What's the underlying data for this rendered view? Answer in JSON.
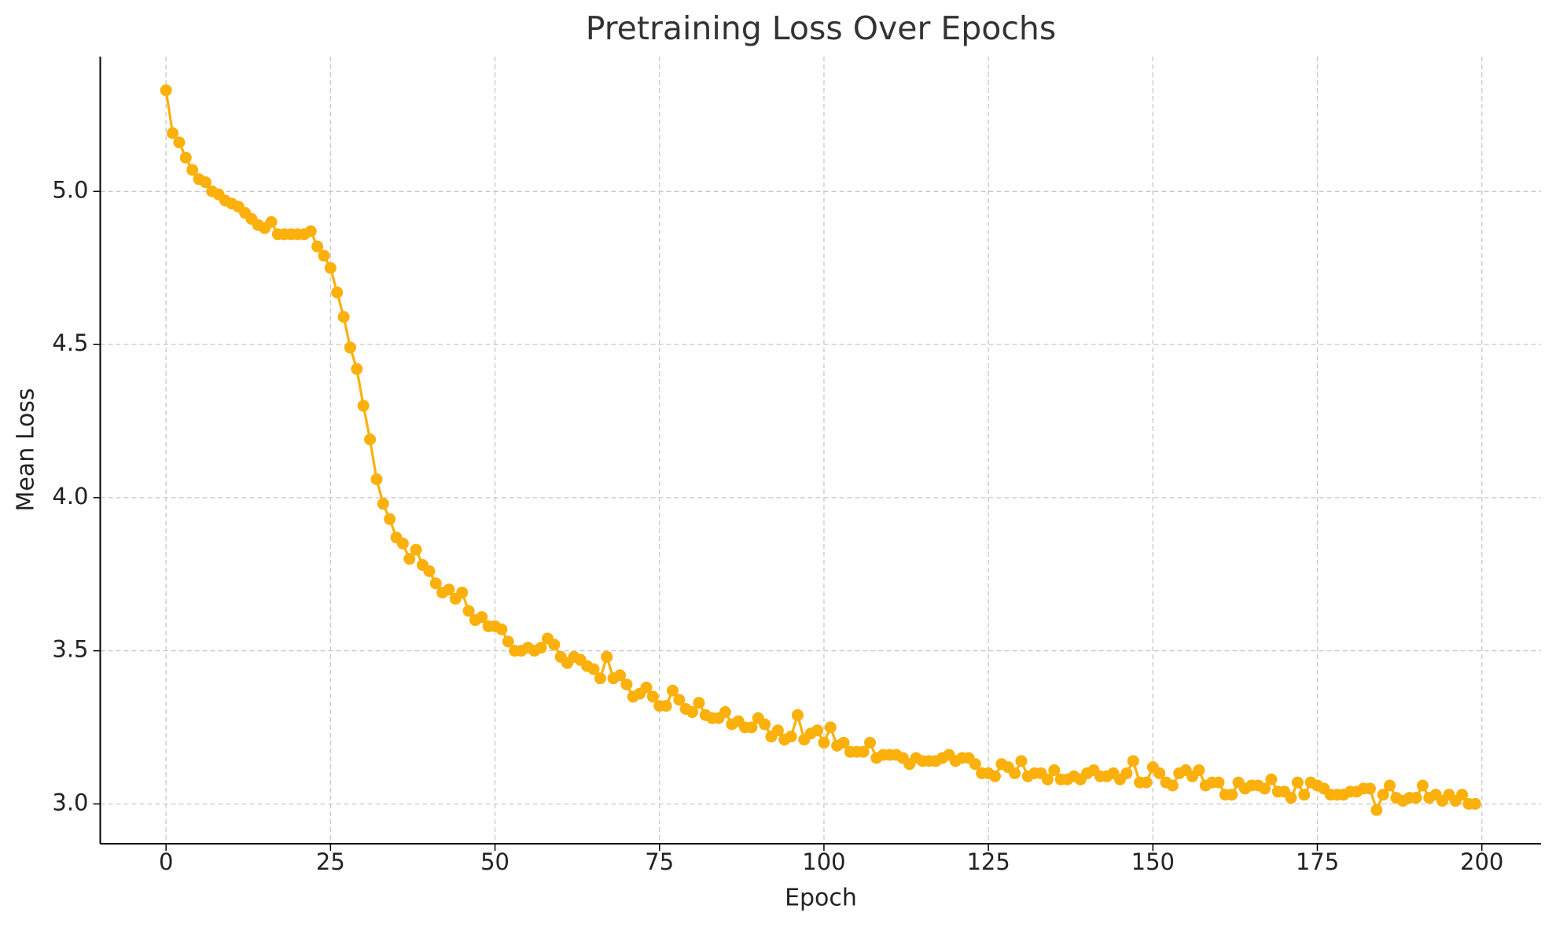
{
  "chart_data": {
    "type": "line",
    "title": "Pretraining Loss Over Epochs",
    "x_label": "Epoch",
    "y_label": "Mean Loss",
    "color": "#fbb00b",
    "grid": true,
    "markers": true,
    "xlim": [
      -10,
      209
    ],
    "ylim": [
      2.87,
      5.44
    ],
    "xticks": [
      0,
      25,
      50,
      75,
      100,
      125,
      150,
      175,
      200
    ],
    "yticks": [
      {
        "value": 3,
        "label": "3.0"
      },
      3.5,
      {
        "value": 4,
        "label": "4.0"
      },
      4.5,
      {
        "value": 5,
        "label": "5.0"
      }
    ],
    "x": [
      0,
      1,
      2,
      3,
      4,
      5,
      6,
      7,
      8,
      9,
      10,
      11,
      12,
      13,
      14,
      15,
      16,
      17,
      18,
      19,
      20,
      21,
      22,
      23,
      24,
      25,
      26,
      27,
      28,
      29,
      30,
      31,
      32,
      33,
      34,
      35,
      36,
      37,
      38,
      39,
      40,
      41,
      42,
      43,
      44,
      45,
      46,
      47,
      48,
      49,
      50,
      51,
      52,
      53,
      54,
      55,
      56,
      57,
      58,
      59,
      60,
      61,
      62,
      63,
      64,
      65,
      66,
      67,
      68,
      69,
      70,
      71,
      72,
      73,
      74,
      75,
      76,
      77,
      78,
      79,
      80,
      81,
      82,
      83,
      84,
      85,
      86,
      87,
      88,
      89,
      90,
      91,
      92,
      93,
      94,
      95,
      96,
      97,
      98,
      99,
      100,
      101,
      102,
      103,
      104,
      105,
      106,
      107,
      108,
      109,
      110,
      111,
      112,
      113,
      114,
      115,
      116,
      117,
      118,
      119,
      120,
      121,
      122,
      123,
      124,
      125,
      126,
      127,
      128,
      129,
      130,
      131,
      132,
      133,
      134,
      135,
      136,
      137,
      138,
      139,
      140,
      141,
      142,
      143,
      144,
      145,
      146,
      147,
      148,
      149,
      150,
      151,
      152,
      153,
      154,
      155,
      156,
      157,
      158,
      159,
      160,
      161,
      162,
      163,
      164,
      165,
      166,
      167,
      168,
      169,
      170,
      171,
      172,
      173,
      174,
      175,
      176,
      177,
      178,
      179,
      180,
      181,
      182,
      183,
      184,
      185,
      186,
      187,
      188,
      189,
      190,
      191,
      192,
      193,
      194,
      195,
      196,
      197,
      198,
      199
    ],
    "values": [
      5.33,
      5.19,
      5.16,
      5.11,
      5.07,
      5.04,
      5.03,
      5.0,
      4.99,
      4.97,
      4.96,
      4.95,
      4.93,
      4.91,
      4.89,
      4.88,
      4.9,
      4.86,
      4.86,
      4.86,
      4.86,
      4.86,
      4.87,
      4.82,
      4.79,
      4.75,
      4.67,
      4.59,
      4.49,
      4.42,
      4.3,
      4.19,
      4.06,
      3.98,
      3.93,
      3.87,
      3.85,
      3.8,
      3.83,
      3.78,
      3.76,
      3.72,
      3.69,
      3.7,
      3.67,
      3.69,
      3.63,
      3.6,
      3.61,
      3.58,
      3.58,
      3.57,
      3.53,
      3.5,
      3.5,
      3.51,
      3.5,
      3.51,
      3.54,
      3.52,
      3.48,
      3.46,
      3.48,
      3.47,
      3.45,
      3.44,
      3.41,
      3.48,
      3.41,
      3.42,
      3.39,
      3.35,
      3.36,
      3.38,
      3.35,
      3.32,
      3.32,
      3.37,
      3.34,
      3.31,
      3.3,
      3.33,
      3.29,
      3.28,
      3.28,
      3.3,
      3.26,
      3.27,
      3.25,
      3.25,
      3.28,
      3.26,
      3.22,
      3.24,
      3.21,
      3.22,
      3.29,
      3.21,
      3.23,
      3.24,
      3.2,
      3.25,
      3.19,
      3.2,
      3.17,
      3.17,
      3.17,
      3.2,
      3.15,
      3.16,
      3.16,
      3.16,
      3.15,
      3.13,
      3.15,
      3.14,
      3.14,
      3.14,
      3.15,
      3.16,
      3.14,
      3.15,
      3.15,
      3.13,
      3.1,
      3.1,
      3.09,
      3.13,
      3.12,
      3.1,
      3.14,
      3.09,
      3.1,
      3.1,
      3.08,
      3.11,
      3.08,
      3.08,
      3.09,
      3.08,
      3.1,
      3.11,
      3.09,
      3.09,
      3.1,
      3.08,
      3.1,
      3.14,
      3.07,
      3.07,
      3.12,
      3.1,
      3.07,
      3.06,
      3.1,
      3.11,
      3.09,
      3.11,
      3.06,
      3.07,
      3.07,
      3.03,
      3.03,
      3.07,
      3.05,
      3.06,
      3.06,
      3.05,
      3.08,
      3.04,
      3.04,
      3.02,
      3.07,
      3.03,
      3.07,
      3.06,
      3.05,
      3.03,
      3.03,
      3.03,
      3.04,
      3.04,
      3.05,
      3.05,
      2.98,
      3.03,
      3.06,
      3.02,
      3.01,
      3.02,
      3.02,
      3.06,
      3.02,
      3.03,
      3.01,
      3.03,
      3.01,
      3.03,
      3.0,
      3.0
    ]
  }
}
